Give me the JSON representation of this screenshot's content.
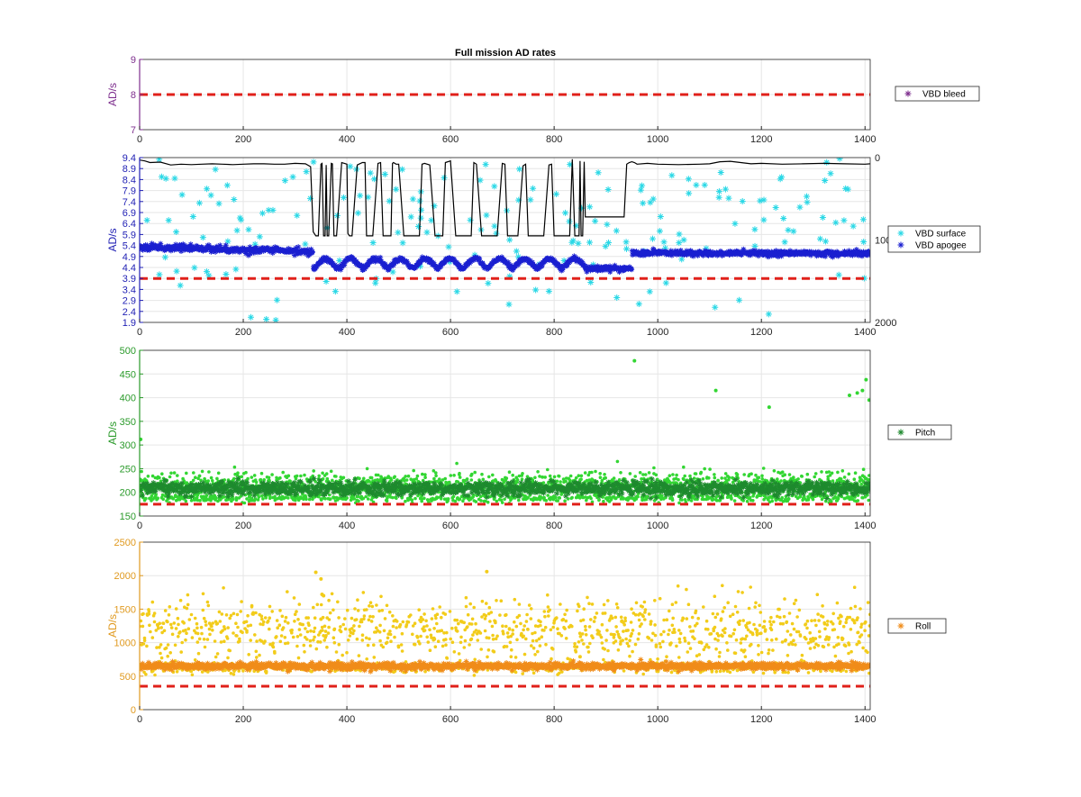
{
  "figure_title": "Full mission AD rates",
  "chart_data": [
    {
      "type": "scatter",
      "id": "bleed",
      "title": "Full mission AD rates",
      "xlabel": "",
      "ylabel": "AD/s",
      "xlim": [
        0,
        1410
      ],
      "ylim": [
        7,
        9
      ],
      "xticks": [
        0,
        200,
        400,
        600,
        800,
        1000,
        1200,
        1400
      ],
      "yticks": [
        7,
        8,
        9
      ],
      "grid": true,
      "axis_color": "#7e2f8e",
      "legend_position": "right",
      "threshold": {
        "value": 8.0,
        "color": "#e0201a",
        "style": "dashed"
      },
      "series": [
        {
          "name": "VBD bleed",
          "marker": "*",
          "color": "#7e2f8e",
          "points": []
        }
      ]
    },
    {
      "type": "scatter",
      "id": "vbd",
      "title": "",
      "xlabel": "",
      "ylabel": "AD/s",
      "xlim": [
        0,
        1410
      ],
      "ylim": [
        1.9,
        9.4
      ],
      "xticks": [
        0,
        200,
        400,
        600,
        800,
        1000,
        1200,
        1400
      ],
      "yticks": [
        1.9,
        2.4,
        2.9,
        3.4,
        3.9,
        4.4,
        4.9,
        5.4,
        5.9,
        6.4,
        6.9,
        7.4,
        7.9,
        8.4,
        8.9,
        9.4
      ],
      "y2lim": [
        0,
        2000
      ],
      "y2ticks": [
        0,
        1000,
        2000
      ],
      "y2_reversed": true,
      "grid": true,
      "axis_color": "#1f1fb4",
      "legend_position": "right",
      "threshold": {
        "value": 3.9,
        "color": "#e0201a",
        "style": "dashed"
      },
      "series": [
        {
          "name": "VBD surface",
          "marker": "*",
          "color": "#2ad8e6",
          "generated": {
            "count": 200,
            "seed": 11
          }
        },
        {
          "name": "VBD apogee",
          "marker": "*",
          "color": "#1a1fd0",
          "generated": {
            "count": 1400,
            "seed": 23
          }
        },
        {
          "name": "",
          "kind": "line",
          "axis": "y2",
          "color": "#000000",
          "x": [
            0,
            10,
            20,
            40,
            60,
            80,
            100,
            120,
            140,
            160,
            180,
            200,
            220,
            240,
            260,
            280,
            300,
            320,
            330,
            335,
            340,
            345,
            350,
            352,
            355,
            358,
            360,
            362,
            365,
            370,
            372,
            375,
            380,
            390,
            400,
            402,
            405,
            410,
            420,
            430,
            435,
            438,
            440,
            445,
            450,
            460,
            465,
            470,
            480,
            485,
            488,
            490,
            495,
            500,
            510,
            520,
            530,
            540,
            545,
            550,
            560,
            570,
            580,
            585,
            590,
            600,
            610,
            620,
            630,
            640,
            645,
            650,
            660,
            670,
            680,
            690,
            700,
            705,
            710,
            720,
            730,
            740,
            745,
            750,
            760,
            770,
            780,
            790,
            795,
            800,
            810,
            820,
            830,
            835,
            840,
            845,
            848,
            850,
            852,
            855,
            858,
            860,
            865,
            880,
            900,
            920,
            935,
            940,
            945,
            950,
            955,
            960,
            980,
            1000,
            1040,
            1080,
            1100,
            1120,
            1140,
            1160,
            1180,
            1200,
            1240,
            1280,
            1320,
            1360,
            1400,
            1410
          ],
          "y": [
            30,
            40,
            60,
            55,
            90,
            80,
            85,
            80,
            75,
            80,
            85,
            80,
            75,
            75,
            80,
            80,
            70,
            75,
            110,
            900,
            950,
            950,
            80,
            70,
            950,
            950,
            90,
            950,
            950,
            70,
            75,
            950,
            950,
            60,
            80,
            920,
            950,
            950,
            90,
            60,
            60,
            950,
            950,
            950,
            950,
            70,
            60,
            950,
            950,
            950,
            70,
            60,
            80,
            80,
            950,
            950,
            950,
            950,
            80,
            70,
            90,
            950,
            950,
            950,
            60,
            40,
            950,
            950,
            950,
            950,
            60,
            80,
            950,
            950,
            950,
            950,
            70,
            80,
            950,
            950,
            950,
            100,
            80,
            950,
            950,
            950,
            950,
            90,
            80,
            950,
            950,
            950,
            950,
            20,
            950,
            950,
            950,
            40,
            950,
            950,
            50,
            720,
            720,
            720,
            720,
            720,
            720,
            80,
            60,
            50,
            60,
            80,
            70,
            80,
            85,
            80,
            75,
            50,
            45,
            60,
            75,
            70,
            80,
            75,
            70,
            75,
            80,
            75
          ]
        }
      ]
    },
    {
      "type": "scatter",
      "id": "pitch",
      "title": "",
      "xlabel": "",
      "ylabel": "AD/s",
      "xlim": [
        0,
        1410
      ],
      "ylim": [
        150,
        500
      ],
      "xticks": [
        0,
        200,
        400,
        600,
        800,
        1000,
        1200,
        1400
      ],
      "yticks": [
        150,
        200,
        250,
        300,
        350,
        400,
        450,
        500
      ],
      "grid": true,
      "axis_color": "#2a9a2a",
      "legend_position": "right",
      "threshold": {
        "value": 175,
        "color": "#e0201a",
        "style": "dashed"
      },
      "series": [
        {
          "name": "",
          "marker": ".",
          "color": "#33d633",
          "generated": {
            "count": 1800,
            "seed": 31
          }
        },
        {
          "name": "Pitch",
          "marker": "*",
          "color": "#1e8a2e",
          "generated": {
            "count": 1400,
            "seed": 37
          }
        }
      ],
      "outliers": [
        [
          2,
          312
        ],
        [
          955,
          478
        ],
        [
          1112,
          415
        ],
        [
          1215,
          380
        ],
        [
          1370,
          405
        ],
        [
          1385,
          410
        ],
        [
          1395,
          415
        ],
        [
          1402,
          438
        ],
        [
          1408,
          395
        ]
      ]
    },
    {
      "type": "scatter",
      "id": "roll",
      "title": "",
      "xlabel": "",
      "ylabel": "AD/s",
      "xlim": [
        0,
        1410
      ],
      "ylim": [
        0,
        2500
      ],
      "xticks": [
        0,
        200,
        400,
        600,
        800,
        1000,
        1200,
        1400
      ],
      "yticks": [
        0,
        500,
        1000,
        1500,
        2000,
        2500
      ],
      "grid": true,
      "axis_color": "#e09a20",
      "legend_position": "right",
      "threshold": {
        "value": 350,
        "color": "#e0201a",
        "style": "dashed"
      },
      "series": [
        {
          "name": "",
          "marker": ".",
          "color": "#f2cc1a",
          "generated": {
            "count": 1500,
            "seed": 41
          }
        },
        {
          "name": "Roll",
          "marker": "*",
          "color": "#f08c1a",
          "generated": {
            "count": 1400,
            "seed": 43
          }
        }
      ],
      "outliers": [
        [
          340,
          2050
        ],
        [
          350,
          1950
        ],
        [
          352,
          1720
        ],
        [
          355,
          1700
        ],
        [
          350,
          1350
        ],
        [
          670,
          2060
        ],
        [
          850,
          790
        ]
      ]
    }
  ]
}
